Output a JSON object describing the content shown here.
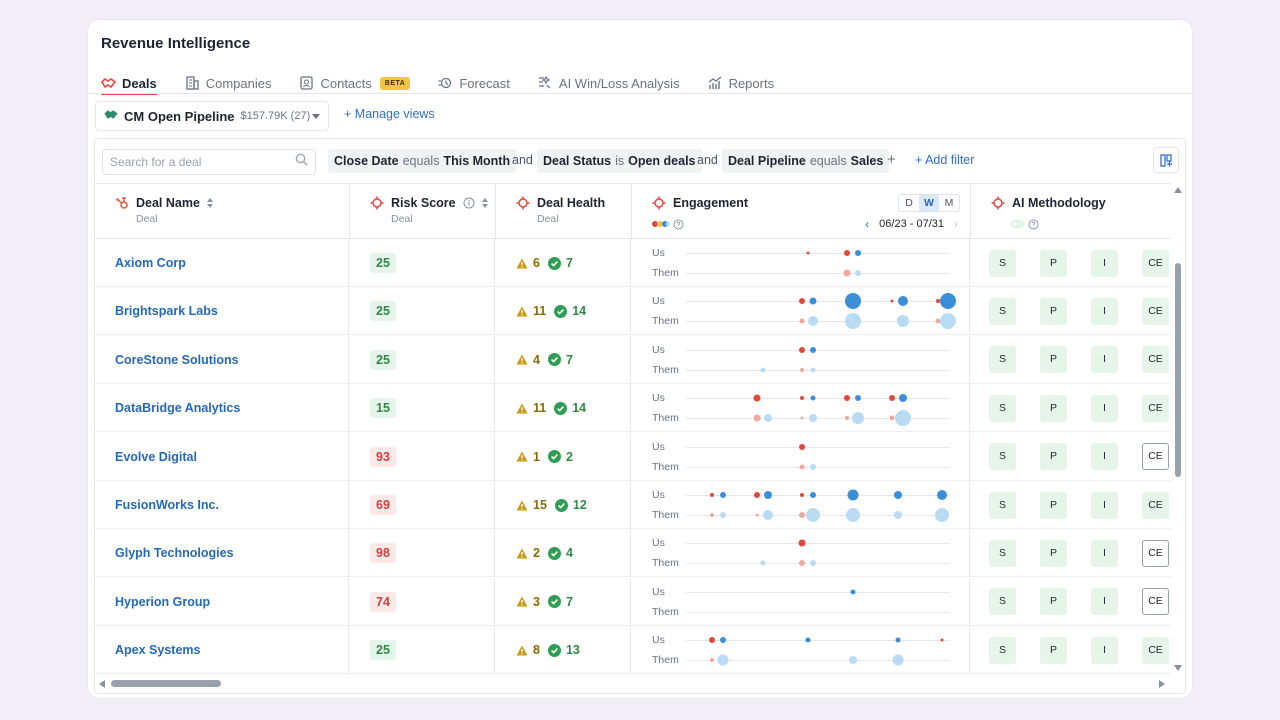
{
  "app": {
    "title": "Revenue Intelligence"
  },
  "tabs": [
    {
      "label": "Deals",
      "icon": "handshake-icon",
      "active": true
    },
    {
      "label": "Companies",
      "icon": "building-icon"
    },
    {
      "label": "Contacts",
      "icon": "contact-card-icon",
      "badge": "BETA"
    },
    {
      "label": "Forecast",
      "icon": "forecast-icon"
    },
    {
      "label": "AI Win/Loss Analysis",
      "icon": "ai-analysis-icon"
    },
    {
      "label": "Reports",
      "icon": "reports-icon"
    }
  ],
  "view": {
    "name": "CM Open Pipeline",
    "meta": "$157.79K (27)",
    "manage_label": "Manage views"
  },
  "search": {
    "placeholder": "Search for a deal"
  },
  "filters": [
    {
      "field": "Close Date",
      "op": "equals",
      "value": "This Month"
    },
    {
      "field": "Deal Status",
      "op": "is",
      "value": "Open deals"
    },
    {
      "field": "Deal Pipeline",
      "op": "equals",
      "value": "Sales"
    }
  ],
  "and_label": "and",
  "add_filter_label": "+ Add filter",
  "columns": {
    "deal_name": {
      "label": "Deal Name",
      "sub": "Deal"
    },
    "risk": {
      "label": "Risk Score",
      "sub": "Deal"
    },
    "health": {
      "label": "Deal Health",
      "sub": "Deal"
    },
    "engagement": {
      "label": "Engagement",
      "periods": [
        "D",
        "W",
        "M"
      ],
      "selected_period": "W",
      "range": "06/23 - 07/31"
    },
    "ai": {
      "label": "AI Methodology"
    }
  },
  "engagement_labels": {
    "us": "Us",
    "them": "Them"
  },
  "methodology_labels": [
    "S",
    "P",
    "I",
    "CE"
  ],
  "colors": {
    "good": "#2f8a45",
    "bad": "#c8433b",
    "accent": "#2f6fcf",
    "us_red": "#e2473b",
    "us_blue": "#3b8fd9",
    "them_red": "#f2a79d",
    "them_blue": "#b9dbf4"
  },
  "deals": [
    {
      "name": "Axiom Corp",
      "risk": "25",
      "risk_level": "good",
      "warn": "6",
      "ok": "7",
      "ce_outline": false
    },
    {
      "name": "Brightspark Labs",
      "risk": "25",
      "risk_level": "good",
      "warn": "11",
      "ok": "14",
      "ce_outline": false
    },
    {
      "name": "CoreStone Solutions",
      "risk": "25",
      "risk_level": "good",
      "warn": "4",
      "ok": "7",
      "ce_outline": false
    },
    {
      "name": "DataBridge Analytics",
      "risk": "15",
      "risk_level": "good",
      "warn": "11",
      "ok": "14",
      "ce_outline": false
    },
    {
      "name": "Evolve Digital",
      "risk": "93",
      "risk_level": "bad",
      "warn": "1",
      "ok": "2",
      "ce_outline": true
    },
    {
      "name": "FusionWorks Inc.",
      "risk": "69",
      "risk_level": "bad",
      "warn": "15",
      "ok": "12",
      "ce_outline": false
    },
    {
      "name": "Glyph Technologies",
      "risk": "98",
      "risk_level": "bad",
      "warn": "2",
      "ok": "4",
      "ce_outline": true
    },
    {
      "name": "Hyperion Group",
      "risk": "74",
      "risk_level": "bad",
      "warn": "3",
      "ok": "7",
      "ce_outline": true
    },
    {
      "name": "Apex Systems",
      "risk": "25",
      "risk_level": "good",
      "warn": "8",
      "ok": "13",
      "ce_outline": false
    }
  ]
}
